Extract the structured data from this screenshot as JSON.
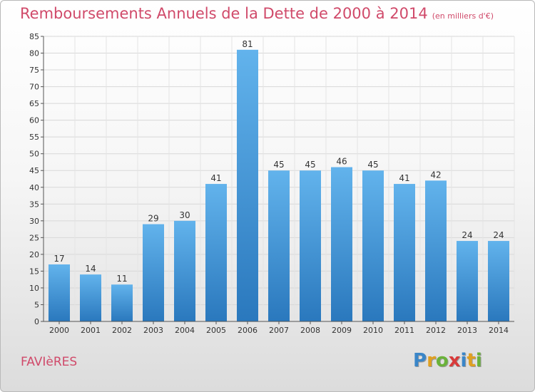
{
  "header": {
    "title": "Remboursements Annuels de la Dette de 2000 à 2014",
    "unit": "(en milliers d'€)"
  },
  "footer": {
    "commune": "FAVIèRES",
    "logo_letters": [
      {
        "ch": "P",
        "color": "#3a86c8"
      },
      {
        "ch": "r",
        "color": "#e0a020"
      },
      {
        "ch": "o",
        "color": "#6ab23a"
      },
      {
        "ch": "x",
        "color": "#d83a3a"
      },
      {
        "ch": "i",
        "color": "#3a86c8"
      },
      {
        "ch": "t",
        "color": "#e0a020"
      },
      {
        "ch": "i",
        "color": "#6ab23a"
      }
    ]
  },
  "chart_data": {
    "type": "bar",
    "title": "Remboursements Annuels de la Dette de 2000 à 2014",
    "categories": [
      "2000",
      "2001",
      "2002",
      "2003",
      "2004",
      "2005",
      "2006",
      "2007",
      "2008",
      "2009",
      "2010",
      "2011",
      "2012",
      "2013",
      "2014"
    ],
    "values": [
      17,
      14,
      11,
      29,
      30,
      41,
      81,
      45,
      45,
      46,
      45,
      41,
      42,
      24,
      24
    ],
    "ylim": [
      0,
      85
    ],
    "yticks": [
      0,
      5,
      10,
      15,
      20,
      25,
      30,
      35,
      40,
      45,
      50,
      55,
      60,
      65,
      70,
      75,
      80,
      85
    ],
    "grid": true,
    "bar_color": "#4da3e0"
  }
}
